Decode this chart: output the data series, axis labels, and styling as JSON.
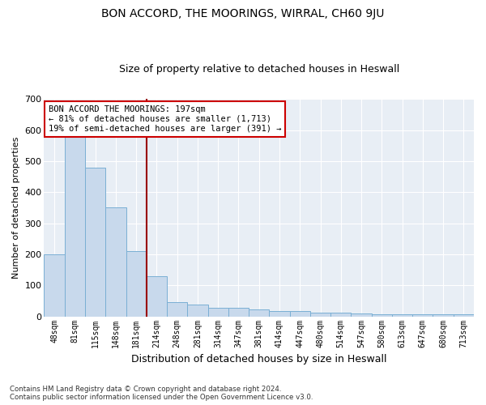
{
  "title": "BON ACCORD, THE MOORINGS, WIRRAL, CH60 9JU",
  "subtitle": "Size of property relative to detached houses in Heswall",
  "xlabel": "Distribution of detached houses by size in Heswall",
  "ylabel": "Number of detached properties",
  "bar_color": "#c8d9ec",
  "bar_edge_color": "#7aafd4",
  "background_color": "#e8eef5",
  "categories": [
    "48sqm",
    "81sqm",
    "115sqm",
    "148sqm",
    "181sqm",
    "214sqm",
    "248sqm",
    "281sqm",
    "314sqm",
    "347sqm",
    "381sqm",
    "414sqm",
    "447sqm",
    "480sqm",
    "514sqm",
    "547sqm",
    "580sqm",
    "613sqm",
    "647sqm",
    "680sqm",
    "713sqm"
  ],
  "values": [
    200,
    580,
    480,
    350,
    210,
    130,
    45,
    38,
    28,
    28,
    22,
    18,
    18,
    12,
    12,
    10,
    8,
    8,
    8,
    8,
    8
  ],
  "vline_x": 4.5,
  "vline_color": "#990000",
  "annotation_text": "BON ACCORD THE MOORINGS: 197sqm\n← 81% of detached houses are smaller (1,713)\n19% of semi-detached houses are larger (391) →",
  "annotation_box_color": "white",
  "annotation_box_edge": "#cc0000",
  "ylim": [
    0,
    700
  ],
  "yticks": [
    0,
    100,
    200,
    300,
    400,
    500,
    600,
    700
  ],
  "footnote": "Contains HM Land Registry data © Crown copyright and database right 2024.\nContains public sector information licensed under the Open Government Licence v3.0."
}
